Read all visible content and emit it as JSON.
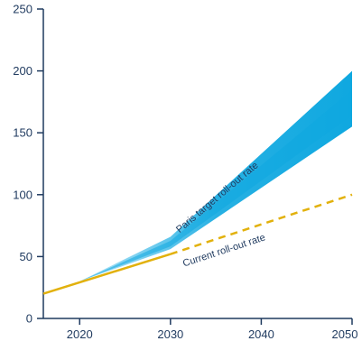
{
  "chart_data": {
    "type": "area",
    "title": "",
    "xlabel": "",
    "ylabel": "",
    "xlim": [
      2016,
      2050
    ],
    "ylim": [
      0,
      250
    ],
    "x_ticks": [
      2020,
      2030,
      2040,
      2050
    ],
    "y_ticks": [
      0,
      50,
      100,
      150,
      200,
      250
    ],
    "grid": false,
    "legend": "none",
    "series": [
      {
        "name": "Current roll-out rate",
        "style": "solid-then-dashed",
        "color": "#e2b10c",
        "points": [
          [
            2016,
            20
          ],
          [
            2030,
            52
          ],
          [
            2050,
            100
          ]
        ],
        "solid_until": 2030
      },
      {
        "name": "Paris target roll-out rate",
        "style": "band",
        "color": "#0fa8e0",
        "points": [
          {
            "x": 2020,
            "low": 30,
            "mid": 30,
            "high": 30
          },
          {
            "x": 2030,
            "low": 56,
            "mid": 60,
            "high": 66
          },
          {
            "x": 2050,
            "low": 155,
            "mid": 172,
            "high": 200
          }
        ]
      }
    ],
    "annotations": [
      {
        "text": "Paris target roll-out rate",
        "series": "Paris target roll-out rate"
      },
      {
        "text": "Current roll-out rate",
        "series": "Current roll-out rate"
      }
    ]
  }
}
